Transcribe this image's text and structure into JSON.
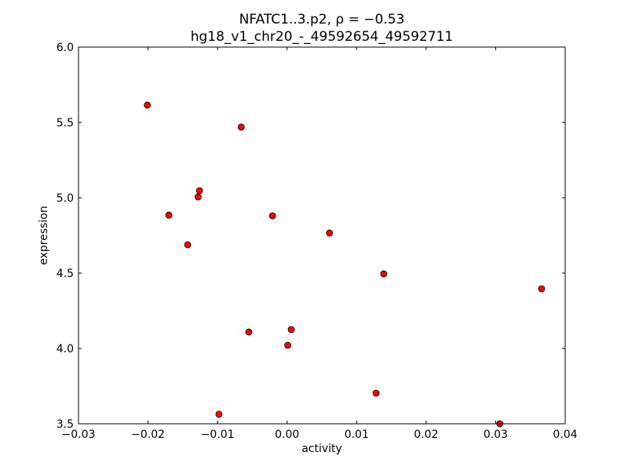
{
  "chart_data": {
    "type": "scatter",
    "title_line1": "NFATC1..3.p2, ρ = −0.53",
    "title_line2": "hg18_v1_chr20_-_49592654_49592711",
    "xlabel": "activity",
    "ylabel": "expression",
    "xlim": [
      -0.03,
      0.04
    ],
    "ylim": [
      3.5,
      6.0
    ],
    "xticks": [
      "−0.03",
      "−0.02",
      "−0.01",
      "0.00",
      "0.01",
      "0.02",
      "0.03",
      "0.04"
    ],
    "xtick_values": [
      -0.03,
      -0.02,
      -0.01,
      0.0,
      0.01,
      0.02,
      0.03,
      0.04
    ],
    "yticks": [
      "3.5",
      "4.0",
      "4.5",
      "5.0",
      "5.5",
      "6.0"
    ],
    "ytick_values": [
      3.5,
      4.0,
      4.5,
      5.0,
      5.5,
      6.0
    ],
    "grid": false,
    "marker_color": "#ff0000",
    "points": [
      {
        "x": -0.0201,
        "y": 5.615
      },
      {
        "x": -0.0066,
        "y": 5.469
      },
      {
        "x": -0.0126,
        "y": 5.047
      },
      {
        "x": -0.0128,
        "y": 5.005
      },
      {
        "x": -0.017,
        "y": 4.885
      },
      {
        "x": -0.0021,
        "y": 4.88
      },
      {
        "x": -0.0143,
        "y": 4.688
      },
      {
        "x": 0.0061,
        "y": 4.766
      },
      {
        "x": 0.0139,
        "y": 4.495
      },
      {
        "x": 0.0366,
        "y": 4.396
      },
      {
        "x": 0.0006,
        "y": 4.125
      },
      {
        "x": -0.0055,
        "y": 4.109
      },
      {
        "x": 0.0001,
        "y": 4.021
      },
      {
        "x": 0.0128,
        "y": 3.703
      },
      {
        "x": -0.0098,
        "y": 3.563
      },
      {
        "x": 0.0306,
        "y": 3.5
      }
    ]
  }
}
